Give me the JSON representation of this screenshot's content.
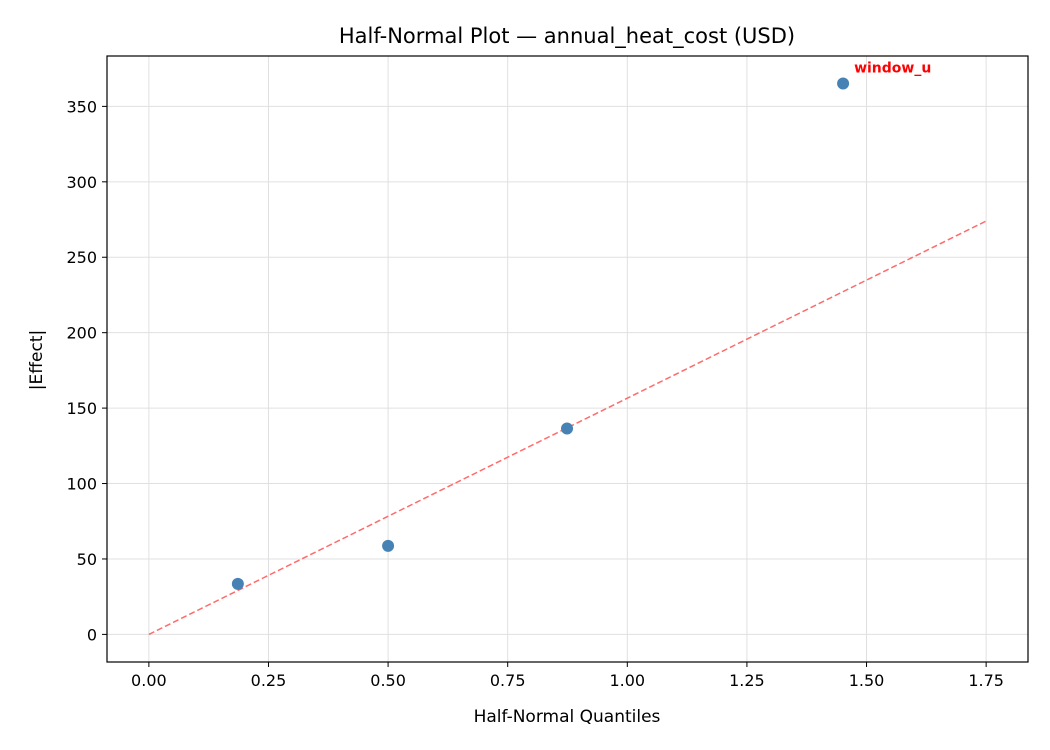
{
  "chart_data": {
    "type": "scatter",
    "title": "Half-Normal Plot — annual_heat_cost (USD)",
    "xlabel": "Half-Normal Quantiles",
    "ylabel": "|Effect|",
    "xlim": [
      -0.0875,
      1.8375
    ],
    "ylim": [
      -18.3,
      383.4
    ],
    "xticks": [
      0.0,
      0.25,
      0.5,
      0.75,
      1.0,
      1.25,
      1.5,
      1.75
    ],
    "xtick_labels": [
      "0.00",
      "0.25",
      "0.50",
      "0.75",
      "1.00",
      "1.25",
      "1.50",
      "1.75"
    ],
    "yticks": [
      0,
      50,
      100,
      150,
      200,
      250,
      300,
      350
    ],
    "ytick_labels": [
      "0",
      "50",
      "100",
      "150",
      "200",
      "250",
      "300",
      "350"
    ],
    "grid": true,
    "points": [
      {
        "x": 0.186,
        "y": 33.5
      },
      {
        "x": 0.5,
        "y": 58.7
      },
      {
        "x": 0.874,
        "y": 136.5
      },
      {
        "x": 1.451,
        "y": 365.2
      }
    ],
    "reference_line": {
      "x": [
        0.0,
        1.75
      ],
      "y": [
        0.0,
        274.0
      ],
      "style": "dashed"
    },
    "annotations": [
      {
        "text": "window_u",
        "x": 1.451,
        "y": 365.2
      }
    ],
    "colors": {
      "points": "#4682b4",
      "reference_line": "#ff6b6b",
      "annotation": "#ff0000",
      "grid": "#e0e0e0"
    }
  }
}
